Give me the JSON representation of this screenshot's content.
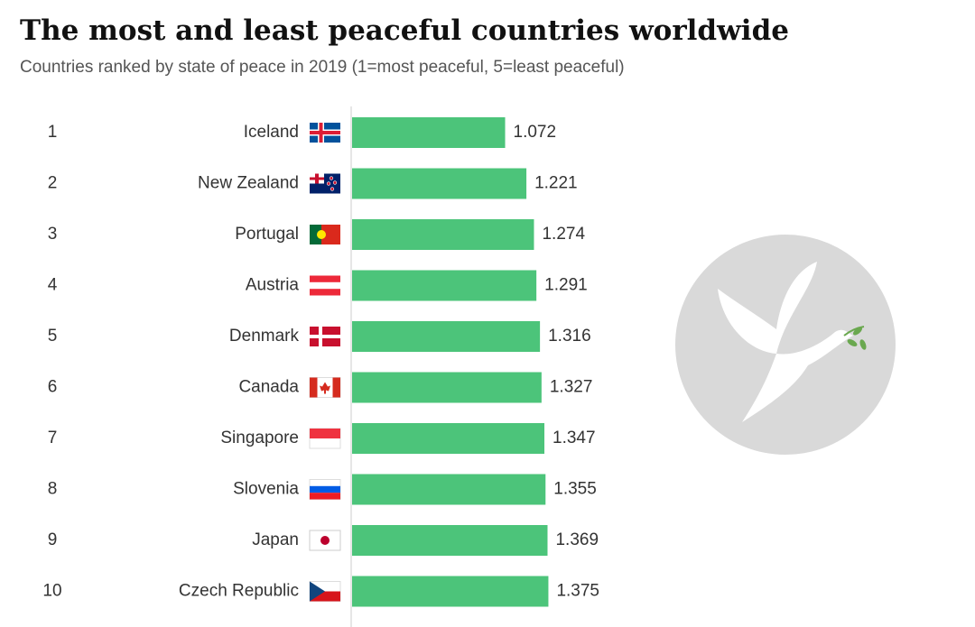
{
  "chart_data": {
    "type": "bar",
    "title": "The most and least peaceful countries worldwide",
    "subtitle": "Countries ranked by state of peace in 2019 (1=most peaceful, 5=least peaceful)",
    "ranks": [
      1,
      2,
      3,
      4,
      5,
      6,
      7,
      8,
      9,
      10
    ],
    "categories": [
      "Iceland",
      "New Zealand",
      "Portugal",
      "Austria",
      "Denmark",
      "Canada",
      "Singapore",
      "Slovenia",
      "Japan",
      "Czech Republic"
    ],
    "values": [
      1.072,
      1.221,
      1.274,
      1.291,
      1.316,
      1.327,
      1.347,
      1.355,
      1.369,
      1.375
    ],
    "color": "#4cc47a",
    "xlim": [
      0,
      4.3
    ]
  }
}
